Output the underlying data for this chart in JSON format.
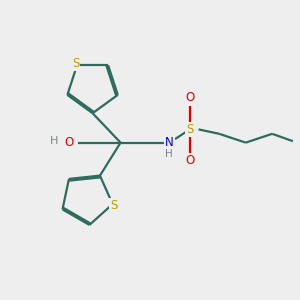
{
  "bg_color": "#eeeeee",
  "bond_color": "#2d6b5e",
  "S_color": "#b8a000",
  "O_color": "#dd0000",
  "N_color": "#0000cc",
  "H_color": "#778888",
  "line_width": 1.6,
  "dbo": 0.06,
  "figsize": [
    3.0,
    3.0
  ],
  "dpi": 100,
  "xlim": [
    0,
    10
  ],
  "ylim": [
    0,
    10
  ]
}
